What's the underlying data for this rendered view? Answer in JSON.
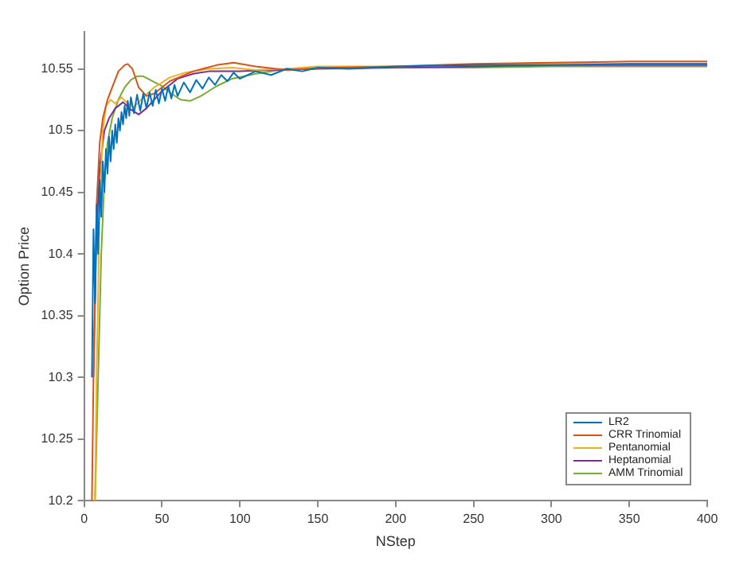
{
  "chart_data": {
    "type": "line",
    "xlabel": "NStep",
    "ylabel": "Option Price",
    "xlim": [
      0,
      400
    ],
    "xticks": [
      0,
      50,
      100,
      150,
      200,
      250,
      300,
      350,
      400
    ],
    "ylim": [
      10.2,
      10.58
    ],
    "yticks": [
      10.2,
      10.25,
      10.3,
      10.35,
      10.4,
      10.45,
      10.5,
      10.55
    ],
    "grid": false,
    "legend": "bottom right",
    "marker": "none",
    "line_style": "solid",
    "series": [
      {
        "name": "LR2",
        "color": "#0072bd",
        "x": [
          5,
          6,
          7,
          8,
          9,
          10,
          11,
          12,
          13,
          14,
          15,
          16,
          17,
          18,
          19,
          20,
          21,
          22,
          23,
          24,
          25,
          26,
          27,
          28,
          29,
          30,
          32,
          34,
          36,
          38,
          40,
          42,
          44,
          46,
          48,
          50,
          52,
          54,
          56,
          58,
          60,
          64,
          68,
          72,
          76,
          80,
          84,
          88,
          92,
          96,
          100,
          110,
          120,
          130,
          140,
          150,
          170,
          200,
          250,
          300,
          350,
          400
        ],
        "values": [
          10.3,
          10.42,
          10.36,
          10.44,
          10.4,
          10.46,
          10.43,
          10.475,
          10.45,
          10.485,
          10.465,
          10.495,
          10.475,
          10.5,
          10.485,
          10.505,
          10.49,
          10.51,
          10.5,
          10.515,
          10.505,
          10.52,
          10.51,
          10.524,
          10.512,
          10.527,
          10.514,
          10.529,
          10.516,
          10.53,
          10.518,
          10.531,
          10.52,
          10.533,
          10.522,
          10.534,
          10.524,
          10.536,
          10.526,
          10.537,
          10.528,
          10.539,
          10.531,
          10.541,
          10.534,
          10.543,
          10.537,
          10.545,
          10.54,
          10.547,
          10.542,
          10.548,
          10.545,
          10.55,
          10.548,
          10.551,
          10.55,
          10.552,
          10.553,
          10.553,
          10.554,
          10.554
        ]
      },
      {
        "name": "CRR Trinomial",
        "color": "#d95319",
        "x": [
          5,
          6,
          8,
          10,
          12,
          15,
          18,
          22,
          26,
          28,
          31,
          35,
          40,
          45,
          55,
          70,
          85,
          96,
          110,
          130,
          160,
          200,
          250,
          300,
          350,
          400
        ],
        "values": [
          10.2,
          10.3,
          10.44,
          10.49,
          10.51,
          10.525,
          10.535,
          10.548,
          10.553,
          10.554,
          10.55,
          10.535,
          10.528,
          10.53,
          10.54,
          10.548,
          10.553,
          10.555,
          10.552,
          10.549,
          10.551,
          10.552,
          10.554,
          10.555,
          10.556,
          10.556
        ]
      },
      {
        "name": "Pentanomial",
        "color": "#edb120",
        "x": [
          7,
          8,
          10,
          12,
          14,
          17,
          20,
          24,
          28,
          32,
          38,
          45,
          55,
          65,
          80,
          95,
          110,
          130,
          150,
          200,
          250,
          300,
          350,
          400
        ],
        "values": [
          10.2,
          10.3,
          10.44,
          10.5,
          10.52,
          10.525,
          10.522,
          10.527,
          10.522,
          10.519,
          10.527,
          10.535,
          10.543,
          10.547,
          10.55,
          10.551,
          10.549,
          10.55,
          10.552,
          10.552,
          10.553,
          10.554,
          10.554,
          10.554
        ]
      },
      {
        "name": "Heptanomial",
        "color": "#7e2f8e",
        "x": [
          6,
          7,
          8,
          10,
          13,
          16,
          20,
          25,
          30,
          35,
          40,
          50,
          60,
          70,
          80,
          100,
          120,
          150,
          200,
          250,
          300,
          350,
          400
        ],
        "values": [
          10.3,
          10.36,
          10.42,
          10.47,
          10.5,
          10.51,
          10.518,
          10.523,
          10.517,
          10.513,
          10.518,
          10.532,
          10.542,
          10.546,
          10.548,
          10.548,
          10.549,
          10.55,
          10.551,
          10.552,
          10.553,
          10.553,
          10.553
        ]
      },
      {
        "name": "AMM Trinomial",
        "color": "#77ac30",
        "x": [
          7,
          9,
          11,
          13,
          15,
          18,
          22,
          26,
          30,
          34,
          38,
          44,
          50,
          56,
          62,
          68,
          75,
          85,
          95,
          110,
          130,
          160,
          200,
          250,
          300,
          350,
          400
        ],
        "values": [
          10.2,
          10.3,
          10.4,
          10.46,
          10.49,
          10.51,
          10.525,
          10.535,
          10.541,
          10.544,
          10.544,
          10.54,
          10.536,
          10.53,
          10.525,
          10.524,
          10.528,
          10.536,
          10.542,
          10.546,
          10.55,
          10.551,
          10.551,
          10.551,
          10.552,
          10.552,
          10.552
        ]
      }
    ]
  }
}
